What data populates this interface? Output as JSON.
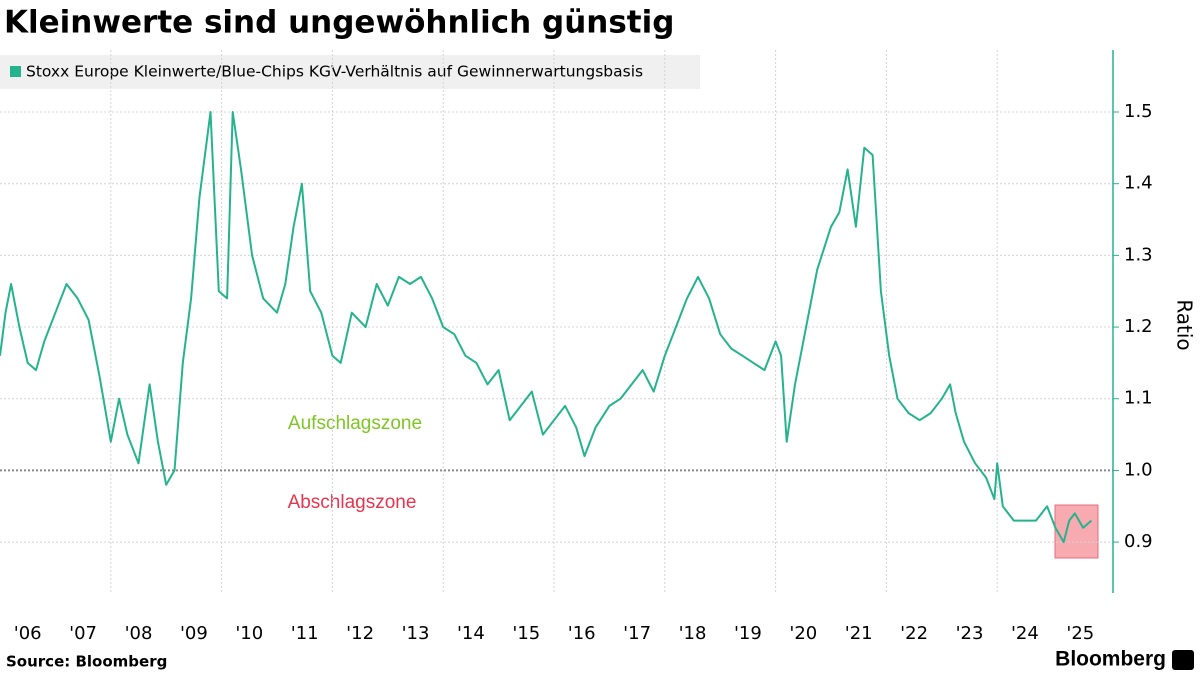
{
  "chart_data": {
    "type": "line",
    "title": "Kleinwerte sind ungewöhnlich günstig",
    "y_axis_label": "Ratio",
    "source": "Source: Bloomberg",
    "brand": "Bloomberg",
    "annotations": [
      "Aufschlagszone",
      "Abschlagszone"
    ],
    "hline": 1,
    "grid": true,
    "legend": "top-left",
    "xlim": [
      2006,
      2026.09
    ],
    "ylim": [
      0.829,
      1.5865
    ],
    "yticks": [
      0.9,
      {
        "value": 1,
        "label": "1.0"
      },
      1.1,
      1.2,
      1.3,
      1.4,
      1.5
    ],
    "xticks": [
      {
        "value": 2006,
        "label": "'06"
      },
      {
        "value": 2007,
        "label": "'07"
      },
      {
        "value": 2008,
        "label": "'08"
      },
      {
        "value": 2009,
        "label": "'09"
      },
      {
        "value": 2010,
        "label": "'10"
      },
      {
        "value": 2011,
        "label": "'11"
      },
      {
        "value": 2012,
        "label": "'12"
      },
      {
        "value": 2013,
        "label": "'13"
      },
      {
        "value": 2014,
        "label": "'14"
      },
      {
        "value": 2015,
        "label": "'15"
      },
      {
        "value": 2016,
        "label": "'16"
      },
      {
        "value": 2017,
        "label": "'17"
      },
      {
        "value": 2018,
        "label": "'18"
      },
      {
        "value": 2019,
        "label": "'19"
      },
      {
        "value": 2020,
        "label": "'20"
      },
      {
        "value": 2021,
        "label": "'21"
      },
      {
        "value": 2022,
        "label": "'22"
      },
      {
        "value": 2023,
        "label": "'23"
      },
      {
        "value": 2024,
        "label": "'24"
      },
      {
        "value": 2025,
        "label": "'25"
      }
    ],
    "x": [
      2006.0,
      2006.1,
      2006.2,
      2006.35,
      2006.5,
      2006.65,
      2006.8,
      2007.0,
      2007.2,
      2007.4,
      2007.6,
      2007.8,
      2008.0,
      2008.15,
      2008.3,
      2008.5,
      2008.7,
      2008.85,
      2009.0,
      2009.15,
      2009.3,
      2009.45,
      2009.6,
      2009.8,
      2009.95,
      2010.1,
      2010.2,
      2010.35,
      2010.55,
      2010.75,
      2011.0,
      2011.15,
      2011.3,
      2011.45,
      2011.6,
      2011.8,
      2012.0,
      2012.15,
      2012.35,
      2012.6,
      2012.8,
      2013.0,
      2013.2,
      2013.4,
      2013.6,
      2013.8,
      2014.0,
      2014.2,
      2014.4,
      2014.6,
      2014.8,
      2015.0,
      2015.2,
      2015.4,
      2015.6,
      2015.8,
      2016.0,
      2016.2,
      2016.4,
      2016.55,
      2016.75,
      2017.0,
      2017.2,
      2017.4,
      2017.6,
      2017.8,
      2018.0,
      2018.2,
      2018.4,
      2018.6,
      2018.8,
      2019.0,
      2019.2,
      2019.4,
      2019.6,
      2019.8,
      2020.0,
      2020.1,
      2020.2,
      2020.35,
      2020.55,
      2020.75,
      2021.0,
      2021.15,
      2021.3,
      2021.45,
      2021.6,
      2021.75,
      2021.9,
      2022.05,
      2022.2,
      2022.4,
      2022.6,
      2022.8,
      2023.0,
      2023.15,
      2023.25,
      2023.4,
      2023.6,
      2023.8,
      2023.95,
      2024.0,
      2024.1,
      2024.3,
      2024.5,
      2024.7,
      2024.9,
      2025.05,
      2025.2,
      2025.3,
      2025.4,
      2025.55,
      2025.7
    ],
    "series": [
      {
        "name": "Stoxx Europe Kleinwerte/Blue-Chips KGV-Verhältnis auf Gewinnerwartungsbasis",
        "color": "#25b38e",
        "values": [
          1.16,
          1.22,
          1.26,
          1.2,
          1.15,
          1.14,
          1.18,
          1.22,
          1.26,
          1.24,
          1.21,
          1.13,
          1.04,
          1.1,
          1.05,
          1.01,
          1.12,
          1.04,
          0.98,
          1.0,
          1.15,
          1.24,
          1.38,
          1.5,
          1.25,
          1.24,
          1.5,
          1.42,
          1.3,
          1.24,
          1.22,
          1.26,
          1.34,
          1.4,
          1.25,
          1.22,
          1.16,
          1.15,
          1.22,
          1.2,
          1.26,
          1.23,
          1.27,
          1.26,
          1.27,
          1.24,
          1.2,
          1.19,
          1.16,
          1.15,
          1.12,
          1.14,
          1.07,
          1.09,
          1.11,
          1.05,
          1.07,
          1.09,
          1.06,
          1.02,
          1.06,
          1.09,
          1.1,
          1.12,
          1.14,
          1.11,
          1.16,
          1.2,
          1.24,
          1.27,
          1.24,
          1.19,
          1.17,
          1.16,
          1.15,
          1.14,
          1.18,
          1.16,
          1.04,
          1.12,
          1.2,
          1.28,
          1.34,
          1.36,
          1.42,
          1.34,
          1.45,
          1.44,
          1.25,
          1.16,
          1.1,
          1.08,
          1.07,
          1.08,
          1.1,
          1.12,
          1.08,
          1.04,
          1.01,
          0.99,
          0.96,
          1.01,
          0.95,
          0.93,
          0.93,
          0.93,
          0.95,
          0.92,
          0.9,
          0.93,
          0.94,
          0.92,
          0.93
        ]
      }
    ]
  }
}
